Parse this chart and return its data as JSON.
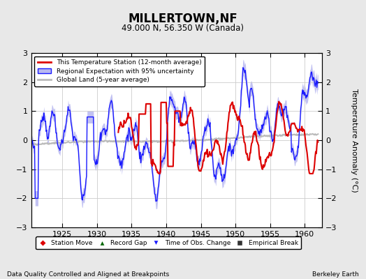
{
  "title": "MILLERTOWN,NF",
  "subtitle": "49.000 N, 56.350 W (Canada)",
  "ylabel": "Temperature Anomaly (°C)",
  "footer_left": "Data Quality Controlled and Aligned at Breakpoints",
  "footer_right": "Berkeley Earth",
  "xlim": [
    1920.5,
    1962.5
  ],
  "ylim": [
    -3,
    3
  ],
  "xticks": [
    1925,
    1930,
    1935,
    1940,
    1945,
    1950,
    1955,
    1960
  ],
  "yticks": [
    -3,
    -2,
    -1,
    0,
    1,
    2,
    3
  ],
  "bg_color": "#e8e8e8",
  "plot_bg_color": "#ffffff",
  "grid_color": "#cccccc",
  "station_color": "#dd0000",
  "regional_color": "#1a1aff",
  "regional_fill_color": "#b8b8f0",
  "global_color": "#bbbbbb",
  "marker_colors": {
    "station_move": "#dd0000",
    "record_gap": "#006600",
    "time_obs": "#1a1aff",
    "empirical": "#333333"
  }
}
